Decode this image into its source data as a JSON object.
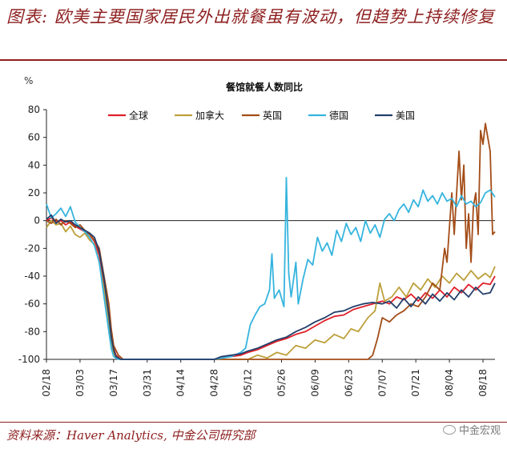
{
  "header": {
    "title": "图表: 欧美主要国家居民外出就餐虽有波动，但趋势上持续修复"
  },
  "footer": {
    "source": "资料来源：Haver Analytics, 中金公司研究部",
    "watermark": "中金宏观"
  },
  "chart_data": {
    "type": "line",
    "title": "餐馆就餐人数同比",
    "ylabel": "%",
    "ylim": [
      -100,
      80
    ],
    "yticks": [
      80,
      60,
      40,
      20,
      0,
      -20,
      -40,
      -60,
      -80,
      -100
    ],
    "xlim": [
      "02/18",
      "08/23"
    ],
    "xticks": [
      "02/18",
      "03/03",
      "03/17",
      "03/31",
      "04/14",
      "04/28",
      "05/12",
      "05/26",
      "06/09",
      "06/23",
      "07/07",
      "07/21",
      "08/04",
      "08/18"
    ],
    "legend_position": "top",
    "series": [
      {
        "name": "全球",
        "color": "#e0202a",
        "points": [
          [
            "02/18",
            0
          ],
          [
            "02/20",
            2
          ],
          [
            "02/22",
            -1
          ],
          [
            "02/24",
            0
          ],
          [
            "02/26",
            -3
          ],
          [
            "02/28",
            -1
          ],
          [
            "03/01",
            -4
          ],
          [
            "03/03",
            -6
          ],
          [
            "03/05",
            -8
          ],
          [
            "03/07",
            -10
          ],
          [
            "03/09",
            -15
          ],
          [
            "03/11",
            -25
          ],
          [
            "03/13",
            -45
          ],
          [
            "03/15",
            -70
          ],
          [
            "03/16",
            -85
          ],
          [
            "03/17",
            -92
          ],
          [
            "03/18",
            -97
          ],
          [
            "03/20",
            -100
          ],
          [
            "03/31",
            -100
          ],
          [
            "04/14",
            -100
          ],
          [
            "04/28",
            -100
          ],
          [
            "05/01",
            -99
          ],
          [
            "05/05",
            -98
          ],
          [
            "05/09",
            -97
          ],
          [
            "05/12",
            -95
          ],
          [
            "05/16",
            -93
          ],
          [
            "05/20",
            -90
          ],
          [
            "05/24",
            -87
          ],
          [
            "05/28",
            -85
          ],
          [
            "06/01",
            -82
          ],
          [
            "06/05",
            -80
          ],
          [
            "06/09",
            -76
          ],
          [
            "06/13",
            -72
          ],
          [
            "06/17",
            -69
          ],
          [
            "06/21",
            -68
          ],
          [
            "06/25",
            -64
          ],
          [
            "06/29",
            -62
          ],
          [
            "07/03",
            -60
          ],
          [
            "07/07",
            -58
          ],
          [
            "07/10",
            -60
          ],
          [
            "07/13",
            -55
          ],
          [
            "07/16",
            -57
          ],
          [
            "07/19",
            -53
          ],
          [
            "07/22",
            -58
          ],
          [
            "07/25",
            -52
          ],
          [
            "07/28",
            -56
          ],
          [
            "07/31",
            -50
          ],
          [
            "08/03",
            -55
          ],
          [
            "08/06",
            -48
          ],
          [
            "08/09",
            -52
          ],
          [
            "08/12",
            -46
          ],
          [
            "08/15",
            -50
          ],
          [
            "08/18",
            -45
          ],
          [
            "08/21",
            -46
          ],
          [
            "08/23",
            -40
          ]
        ]
      },
      {
        "name": "加拿大",
        "color": "#bda03a",
        "points": [
          [
            "02/18",
            -5
          ],
          [
            "02/20",
            0
          ],
          [
            "02/22",
            -3
          ],
          [
            "02/24",
            -2
          ],
          [
            "02/26",
            -8
          ],
          [
            "02/28",
            -4
          ],
          [
            "03/01",
            -10
          ],
          [
            "03/03",
            -12
          ],
          [
            "03/05",
            -9
          ],
          [
            "03/07",
            -14
          ],
          [
            "03/09",
            -17
          ],
          [
            "03/11",
            -30
          ],
          [
            "03/13",
            -50
          ],
          [
            "03/15",
            -75
          ],
          [
            "03/16",
            -88
          ],
          [
            "03/17",
            -95
          ],
          [
            "03/18",
            -99
          ],
          [
            "03/20",
            -100
          ],
          [
            "03/31",
            -100
          ],
          [
            "04/14",
            -100
          ],
          [
            "04/28",
            -100
          ],
          [
            "05/12",
            -100
          ],
          [
            "05/16",
            -97
          ],
          [
            "05/20",
            -99
          ],
          [
            "05/24",
            -95
          ],
          [
            "05/28",
            -97
          ],
          [
            "06/01",
            -90
          ],
          [
            "06/05",
            -92
          ],
          [
            "06/09",
            -86
          ],
          [
            "06/13",
            -88
          ],
          [
            "06/17",
            -82
          ],
          [
            "06/21",
            -85
          ],
          [
            "06/24",
            -78
          ],
          [
            "06/27",
            -80
          ],
          [
            "07/01",
            -70
          ],
          [
            "07/04",
            -65
          ],
          [
            "07/06",
            -45
          ],
          [
            "07/08",
            -58
          ],
          [
            "07/11",
            -55
          ],
          [
            "07/14",
            -48
          ],
          [
            "07/17",
            -55
          ],
          [
            "07/20",
            -45
          ],
          [
            "07/23",
            -50
          ],
          [
            "07/26",
            -42
          ],
          [
            "07/29",
            -48
          ],
          [
            "08/01",
            -40
          ],
          [
            "08/04",
            -45
          ],
          [
            "08/07",
            -38
          ],
          [
            "08/10",
            -43
          ],
          [
            "08/13",
            -36
          ],
          [
            "08/16",
            -42
          ],
          [
            "08/19",
            -38
          ],
          [
            "08/21",
            -41
          ],
          [
            "08/23",
            -33
          ]
        ]
      },
      {
        "name": "英国",
        "color": "#a34d17",
        "points": [
          [
            "02/18",
            0
          ],
          [
            "02/20",
            -2
          ],
          [
            "02/22",
            1
          ],
          [
            "02/24",
            -3
          ],
          [
            "02/26",
            0
          ],
          [
            "02/28",
            -2
          ],
          [
            "03/01",
            -5
          ],
          [
            "03/03",
            -3
          ],
          [
            "03/05",
            -7
          ],
          [
            "03/07",
            -10
          ],
          [
            "03/09",
            -14
          ],
          [
            "03/11",
            -20
          ],
          [
            "03/13",
            -40
          ],
          [
            "03/15",
            -60
          ],
          [
            "03/16",
            -78
          ],
          [
            "03/17",
            -90
          ],
          [
            "03/19",
            -97
          ],
          [
            "03/21",
            -100
          ],
          [
            "04/14",
            -100
          ],
          [
            "05/12",
            -100
          ],
          [
            "06/09",
            -100
          ],
          [
            "07/01",
            -100
          ],
          [
            "07/03",
            -97
          ],
          [
            "07/05",
            -85
          ],
          [
            "07/07",
            -70
          ],
          [
            "07/10",
            -73
          ],
          [
            "07/13",
            -68
          ],
          [
            "07/16",
            -65
          ],
          [
            "07/19",
            -60
          ],
          [
            "07/22",
            -62
          ],
          [
            "07/25",
            -55
          ],
          [
            "07/28",
            -45
          ],
          [
            "07/31",
            -50
          ],
          [
            "08/02",
            -20
          ],
          [
            "08/03",
            -30
          ],
          [
            "08/05",
            20
          ],
          [
            "08/06",
            -10
          ],
          [
            "08/08",
            50
          ],
          [
            "08/09",
            15
          ],
          [
            "08/10",
            40
          ],
          [
            "08/11",
            -20
          ],
          [
            "08/12",
            5
          ],
          [
            "08/13",
            -30
          ],
          [
            "08/14",
            10
          ],
          [
            "08/15",
            20
          ],
          [
            "08/16",
            -10
          ],
          [
            "08/17",
            65
          ],
          [
            "08/18",
            55
          ],
          [
            "08/19",
            70
          ],
          [
            "08/20",
            60
          ],
          [
            "08/21",
            50
          ],
          [
            "08/22",
            -10
          ],
          [
            "08/23",
            -8
          ]
        ]
      },
      {
        "name": "德国",
        "color": "#35b4de",
        "points": [
          [
            "02/18",
            12
          ],
          [
            "02/20",
            2
          ],
          [
            "02/22",
            5
          ],
          [
            "02/24",
            9
          ],
          [
            "02/26",
            3
          ],
          [
            "02/28",
            10
          ],
          [
            "03/01",
            -1
          ],
          [
            "03/03",
            -5
          ],
          [
            "03/05",
            -8
          ],
          [
            "03/07",
            -12
          ],
          [
            "03/09",
            -18
          ],
          [
            "03/11",
            -30
          ],
          [
            "03/13",
            -55
          ],
          [
            "03/15",
            -80
          ],
          [
            "03/16",
            -92
          ],
          [
            "03/17",
            -98
          ],
          [
            "03/19",
            -100
          ],
          [
            "03/31",
            -100
          ],
          [
            "04/14",
            -100
          ],
          [
            "04/28",
            -100
          ],
          [
            "05/05",
            -98
          ],
          [
            "05/09",
            -95
          ],
          [
            "05/11",
            -92
          ],
          [
            "05/13",
            -75
          ],
          [
            "05/15",
            -68
          ],
          [
            "05/17",
            -62
          ],
          [
            "05/19",
            -60
          ],
          [
            "05/21",
            -50
          ],
          [
            "05/22",
            -24
          ],
          [
            "05/23",
            -56
          ],
          [
            "05/25",
            -50
          ],
          [
            "05/27",
            -62
          ],
          [
            "05/28",
            31
          ],
          [
            "05/29",
            -38
          ],
          [
            "05/30",
            -55
          ],
          [
            "06/01",
            -30
          ],
          [
            "06/02",
            -60
          ],
          [
            "06/04",
            -42
          ],
          [
            "06/06",
            -28
          ],
          [
            "06/08",
            -32
          ],
          [
            "06/10",
            -12
          ],
          [
            "06/12",
            -22
          ],
          [
            "06/14",
            -16
          ],
          [
            "06/16",
            -25
          ],
          [
            "06/18",
            -7
          ],
          [
            "06/20",
            -15
          ],
          [
            "06/22",
            -2
          ],
          [
            "06/24",
            -10
          ],
          [
            "06/26",
            -5
          ],
          [
            "06/28",
            -15
          ],
          [
            "06/30",
            0
          ],
          [
            "07/02",
            -9
          ],
          [
            "07/04",
            -3
          ],
          [
            "07/06",
            -12
          ],
          [
            "07/08",
            1
          ],
          [
            "07/10",
            5
          ],
          [
            "07/12",
            0
          ],
          [
            "07/14",
            8
          ],
          [
            "07/16",
            12
          ],
          [
            "07/18",
            6
          ],
          [
            "07/20",
            15
          ],
          [
            "07/22",
            10
          ],
          [
            "07/24",
            22
          ],
          [
            "07/26",
            14
          ],
          [
            "07/28",
            18
          ],
          [
            "07/30",
            12
          ],
          [
            "08/01",
            20
          ],
          [
            "08/03",
            14
          ],
          [
            "08/05",
            16
          ],
          [
            "08/07",
            10
          ],
          [
            "08/09",
            18
          ],
          [
            "08/11",
            12
          ],
          [
            "08/13",
            14
          ],
          [
            "08/15",
            10
          ],
          [
            "08/17",
            13
          ],
          [
            "08/19",
            20
          ],
          [
            "08/21",
            22
          ],
          [
            "08/23",
            17
          ]
        ]
      },
      {
        "name": "美国",
        "color": "#243f6a",
        "points": [
          [
            "02/18",
            1
          ],
          [
            "02/20",
            4
          ],
          [
            "02/22",
            -2
          ],
          [
            "02/24",
            1
          ],
          [
            "02/26",
            -1
          ],
          [
            "02/28",
            0
          ],
          [
            "03/01",
            -3
          ],
          [
            "03/03",
            -5
          ],
          [
            "03/05",
            -7
          ],
          [
            "03/07",
            -9
          ],
          [
            "03/09",
            -12
          ],
          [
            "03/11",
            -22
          ],
          [
            "03/13",
            -42
          ],
          [
            "03/15",
            -68
          ],
          [
            "03/16",
            -84
          ],
          [
            "03/17",
            -93
          ],
          [
            "03/18",
            -98
          ],
          [
            "03/20",
            -100
          ],
          [
            "04/28",
            -100
          ],
          [
            "05/01",
            -98
          ],
          [
            "05/05",
            -97
          ],
          [
            "05/09",
            -96
          ],
          [
            "05/12",
            -94
          ],
          [
            "05/16",
            -92
          ],
          [
            "05/20",
            -89
          ],
          [
            "05/24",
            -86
          ],
          [
            "05/28",
            -84
          ],
          [
            "06/01",
            -80
          ],
          [
            "06/05",
            -77
          ],
          [
            "06/09",
            -73
          ],
          [
            "06/13",
            -70
          ],
          [
            "06/17",
            -66
          ],
          [
            "06/21",
            -65
          ],
          [
            "06/25",
            -62
          ],
          [
            "06/29",
            -60
          ],
          [
            "07/03",
            -59
          ],
          [
            "07/07",
            -60
          ],
          [
            "07/10",
            -58
          ],
          [
            "07/13",
            -63
          ],
          [
            "07/16",
            -56
          ],
          [
            "07/19",
            -62
          ],
          [
            "07/22",
            -55
          ],
          [
            "07/25",
            -60
          ],
          [
            "07/28",
            -53
          ],
          [
            "07/31",
            -58
          ],
          [
            "08/03",
            -52
          ],
          [
            "08/06",
            -57
          ],
          [
            "08/09",
            -50
          ],
          [
            "08/12",
            -55
          ],
          [
            "08/15",
            -48
          ],
          [
            "08/18",
            -53
          ],
          [
            "08/21",
            -52
          ],
          [
            "08/23",
            -45
          ]
        ]
      }
    ]
  }
}
